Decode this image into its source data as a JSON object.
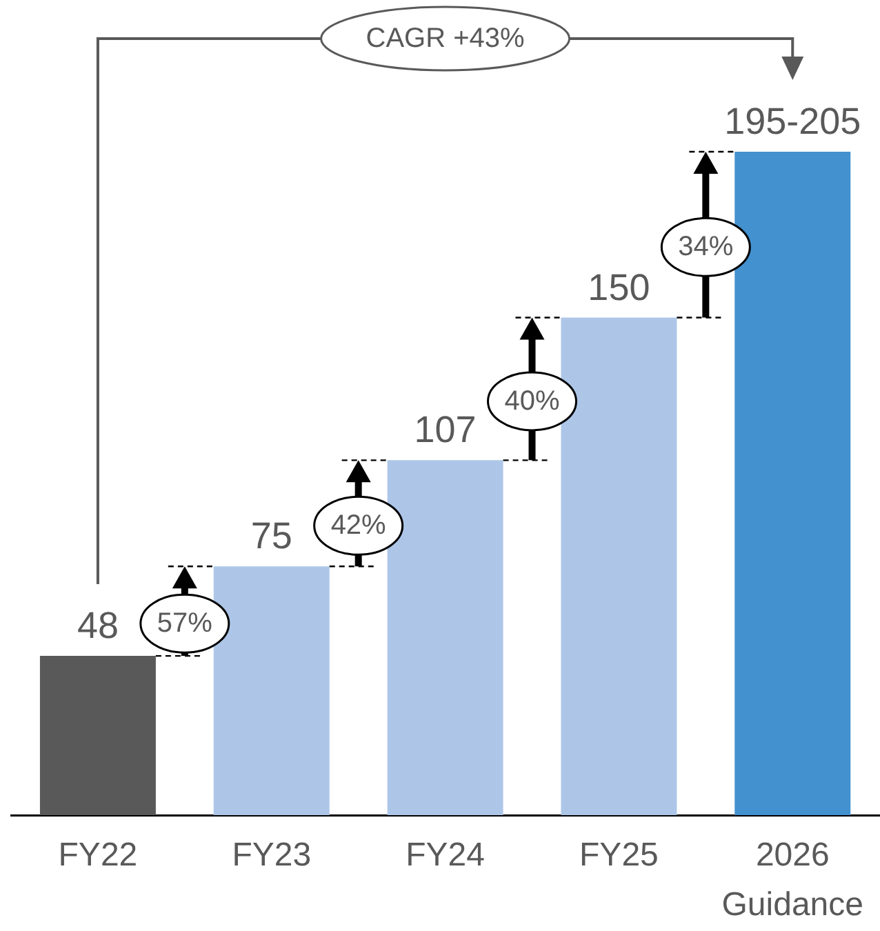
{
  "chart_data": {
    "type": "bar",
    "categories": [
      "FY22",
      "FY23",
      "FY24",
      "FY25",
      "2026 Guidance"
    ],
    "values": [
      48,
      75,
      107,
      150,
      200
    ],
    "value_labels": [
      "48",
      "75",
      "107",
      "150",
      "195-205"
    ],
    "colors": [
      "#595959",
      "#adc6e8",
      "#adc6e8",
      "#adc6e8",
      "#4391cf"
    ],
    "annotations": [
      "CAGR +43%",
      "57%",
      "42%",
      "40%",
      "34%"
    ]
  }
}
